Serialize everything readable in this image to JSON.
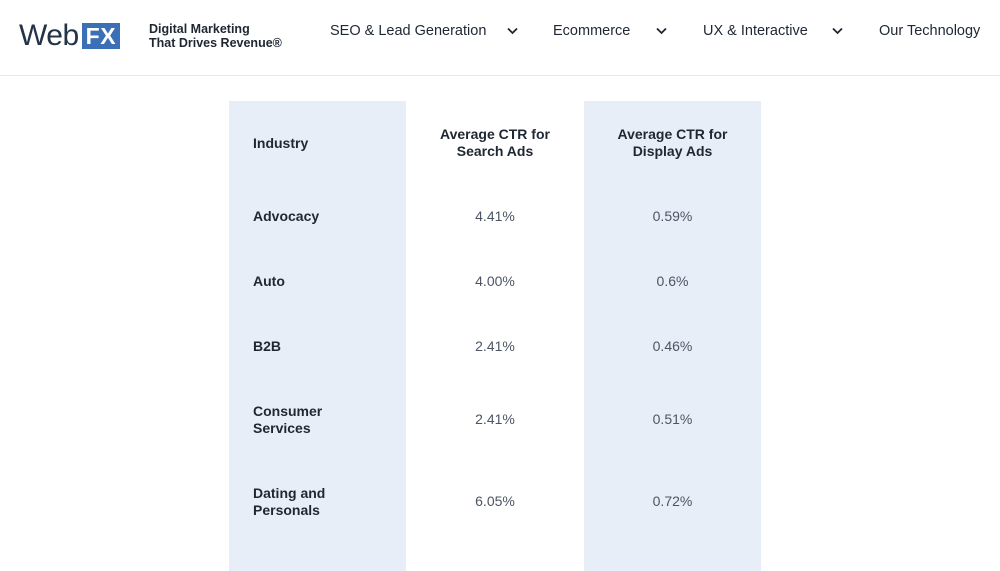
{
  "header": {
    "logo_text": "Web",
    "logo_badge": "FX",
    "tagline_line1": "Digital Marketing",
    "tagline_line2": "That Drives Revenue®",
    "nav": [
      {
        "label": "SEO & Lead Generation",
        "has_dropdown": true
      },
      {
        "label": "Ecommerce",
        "has_dropdown": true
      },
      {
        "label": "UX & Interactive",
        "has_dropdown": true
      },
      {
        "label": "Our Technology",
        "has_dropdown": false
      }
    ]
  },
  "table": {
    "headers": [
      "Industry",
      "Average CTR for Search Ads",
      "Average CTR for Display Ads"
    ],
    "header_lines": {
      "col2": [
        "Average CTR for",
        "Search Ads"
      ],
      "col3": [
        "Average CTR for",
        "Display Ads"
      ]
    },
    "rows": [
      {
        "industry": "Advocacy",
        "industry_lines": [
          "Advocacy"
        ],
        "search": "4.41%",
        "display": "0.59%"
      },
      {
        "industry": "Auto",
        "industry_lines": [
          "Auto"
        ],
        "search": "4.00%",
        "display": "0.6%"
      },
      {
        "industry": "B2B",
        "industry_lines": [
          "B2B"
        ],
        "search": "2.41%",
        "display": "0.46%"
      },
      {
        "industry": "Consumer Services",
        "industry_lines": [
          "Consumer",
          "Services"
        ],
        "search": "2.41%",
        "display": "0.51%"
      },
      {
        "industry": "Dating and Personals",
        "industry_lines": [
          "Dating and",
          "Personals"
        ],
        "search": "6.05%",
        "display": "0.72%"
      }
    ]
  },
  "colors": {
    "brand_blue": "#3b6fb6",
    "column_band": "#e7eef8",
    "text_dark": "#1f2733",
    "text_value": "#4b5563"
  }
}
